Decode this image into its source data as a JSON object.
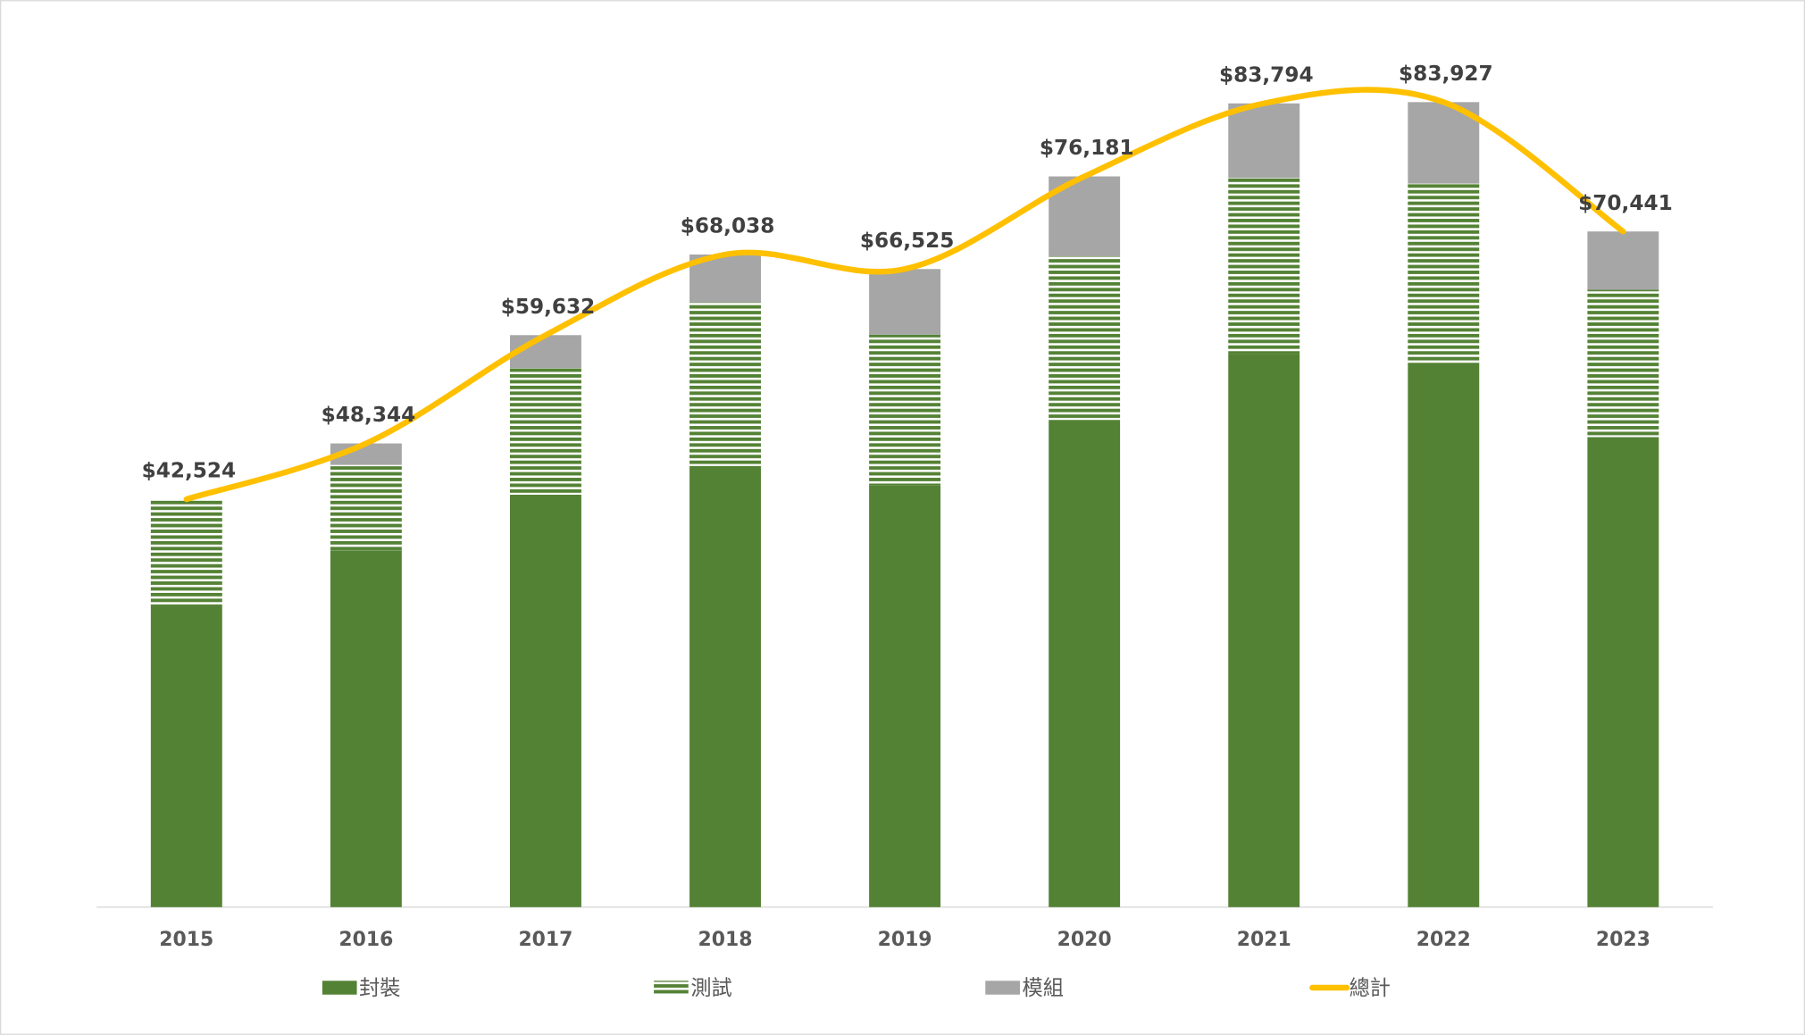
{
  "chart_data": {
    "type": "stacked-bar-line",
    "categories": [
      "2015",
      "2016",
      "2017",
      "2018",
      "2019",
      "2020",
      "2021",
      "2022",
      "2023"
    ],
    "series": [
      {
        "name": "封裝",
        "color": "#548235",
        "values": [
          31400,
          37200,
          43000,
          46000,
          43950,
          50800,
          57650,
          56700,
          49000
        ]
      },
      {
        "name": "測試",
        "color": "#548235",
        "pattern": "horizontal-stripes",
        "values": [
          11124,
          8900,
          13200,
          17050,
          15730,
          17050,
          18370,
          18730,
          15370
        ]
      },
      {
        "name": "模組",
        "color": "#a6a6a6",
        "values": [
          0,
          2244,
          3432,
          4988,
          6845,
          8331,
          7774,
          8497,
          6071
        ]
      },
      {
        "name": "總計",
        "color": "#ffc000",
        "type": "line",
        "smooth": true,
        "values": [
          42524,
          48344,
          59632,
          68038,
          66525,
          76181,
          83794,
          83927,
          70441
        ],
        "value_labels": [
          "$42,524",
          "$48,344",
          "$59,632",
          "$68,038",
          "$66,525",
          "$76,181",
          "$83,794",
          "$83,927",
          "$70,441"
        ]
      }
    ],
    "ylim": [
      0,
      90000
    ],
    "legend": "bottom"
  }
}
